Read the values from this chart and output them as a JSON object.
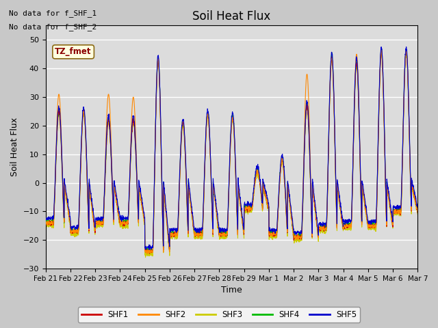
{
  "title": "Soil Heat Flux",
  "xlabel": "Time",
  "ylabel": "Soil Heat Flux",
  "ylim": [
    -30,
    55
  ],
  "yticks": [
    -30,
    -20,
    -10,
    0,
    10,
    20,
    30,
    40,
    50
  ],
  "background_color": "#dcdcdc",
  "fig_color": "#c8c8c8",
  "line_colors": {
    "SHF1": "#cc0000",
    "SHF2": "#ff8800",
    "SHF3": "#cccc00",
    "SHF4": "#00bb00",
    "SHF5": "#0000cc"
  },
  "legend_labels": [
    "SHF1",
    "SHF2",
    "SHF3",
    "SHF4",
    "SHF5"
  ],
  "tz_label": "TZ_fmet",
  "no_data_labels": [
    "No data for f_SHF_1",
    "No data for f_SHF_2"
  ],
  "x_tick_labels": [
    "Feb 21",
    "Feb 22",
    "Feb 23",
    "Feb 24",
    "Feb 25",
    "Feb 26",
    "Feb 27",
    "Feb 28",
    "Feb 29",
    "Mar 1",
    "Mar 2",
    "Mar 3",
    "Mar 4",
    "Mar 5",
    "Mar 6",
    "Mar 7"
  ],
  "num_days": 15,
  "points_per_day": 144,
  "day_peak_amps": [
    25,
    25,
    22,
    22,
    43,
    21,
    24,
    23,
    4,
    8,
    27,
    44,
    42,
    46,
    46
  ],
  "night_trough": [
    -14,
    -17,
    -14,
    -14,
    -24,
    -18,
    -18,
    -18,
    -9,
    -18,
    -19,
    -16,
    -15,
    -15,
    -10
  ],
  "shf2_extra_peak": [
    31,
    0,
    31,
    30,
    0,
    22,
    0,
    0,
    0,
    0,
    38,
    0,
    45,
    0,
    0
  ]
}
